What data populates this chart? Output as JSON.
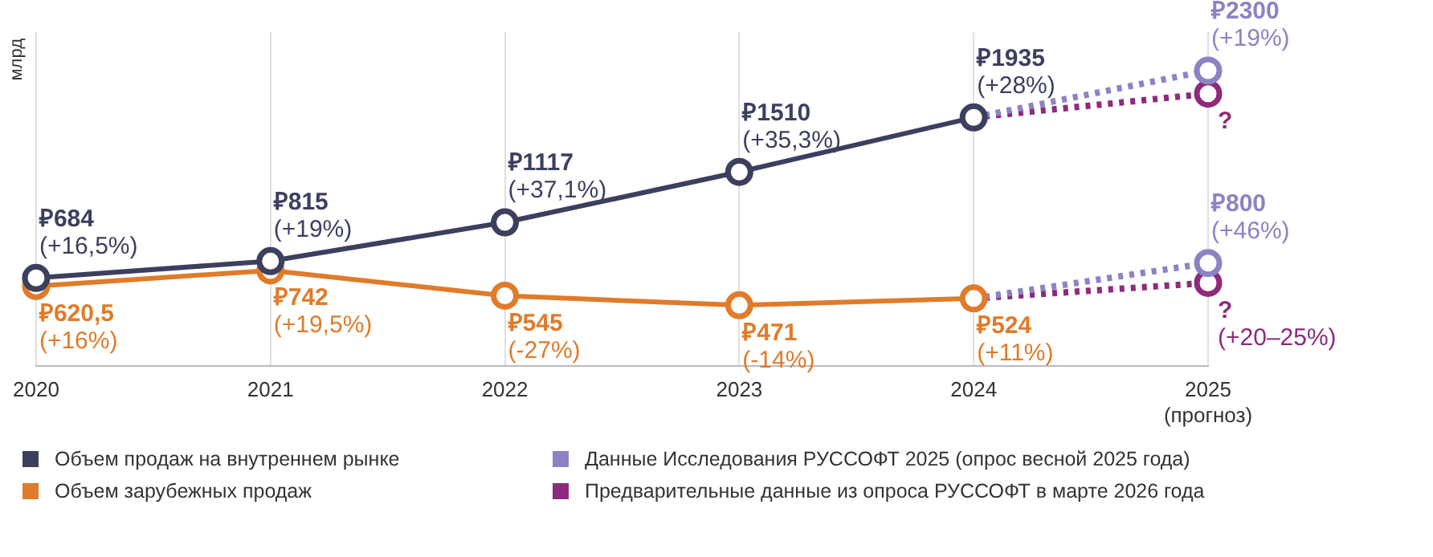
{
  "chart_data": {
    "type": "line",
    "ylabel": "млрд",
    "categories": [
      "2020",
      "2021",
      "2022",
      "2023",
      "2024",
      "2025\n(прогноз)"
    ],
    "ylim": [
      0,
      2600
    ],
    "tick_labels": "x",
    "grid": "x",
    "legend": "bottom",
    "marker": "circle",
    "series": [
      {
        "name": "Объем продаж на внутреннем рынке",
        "color": "#3c3f5e",
        "line_style": "solid",
        "values": [
          684,
          815,
          1117,
          1510,
          1935,
          null
        ],
        "value_labels": [
          "₽684\n(+16,5%)",
          "₽815\n(+19%)",
          "₽1117\n(+37,1%)",
          "₽1510\n(+35,3%)",
          "₽1935\n(+28%)",
          null
        ]
      },
      {
        "name": "Объем зарубежных продаж",
        "color": "#e07b2a",
        "line_style": "solid",
        "values": [
          620.5,
          742,
          545,
          471,
          524,
          null
        ],
        "value_labels": [
          "₽620,5\n(+16%)",
          "₽742\n(+19,5%)",
          "₽545\n(-27%)",
          "₽471\n(-14%)",
          "₽524\n(+11%)",
          null
        ]
      },
      {
        "name": "Данные Исследования РУССОФТ 2025 (опрос весной 2025 года)",
        "color": "#8b83c3",
        "line_style": "dotted",
        "values": [
          null,
          null,
          null,
          null,
          1935,
          2300
        ],
        "value_labels": [
          null,
          null,
          null,
          null,
          null,
          "₽2300\n(+19%)"
        ]
      },
      {
        "name": null,
        "color": "#8b83c3",
        "line_style": "dotted",
        "values": [
          null,
          null,
          null,
          null,
          524,
          800
        ],
        "value_labels": [
          null,
          null,
          null,
          null,
          null,
          "₽800\n(+46%)"
        ]
      },
      {
        "name": "Предварительные данные из опроса РУССОФТ в марте 2026 года",
        "color": "#8e2a7c",
        "line_style": "dotted",
        "values": [
          null,
          null,
          null,
          null,
          1935,
          2120
        ]
      },
      {
        "name": null,
        "color": "#8e2a7c",
        "line_style": "dotted",
        "values": [
          null,
          null,
          null,
          null,
          524,
          645
        ]
      }
    ],
    "annotations": [
      {
        "text": "?",
        "x": "2025\n(прогноз)",
        "y": 2120
      },
      {
        "text": "?\n(+20–25%)",
        "x": "2025\n(прогноз)",
        "y": 645
      }
    ]
  }
}
